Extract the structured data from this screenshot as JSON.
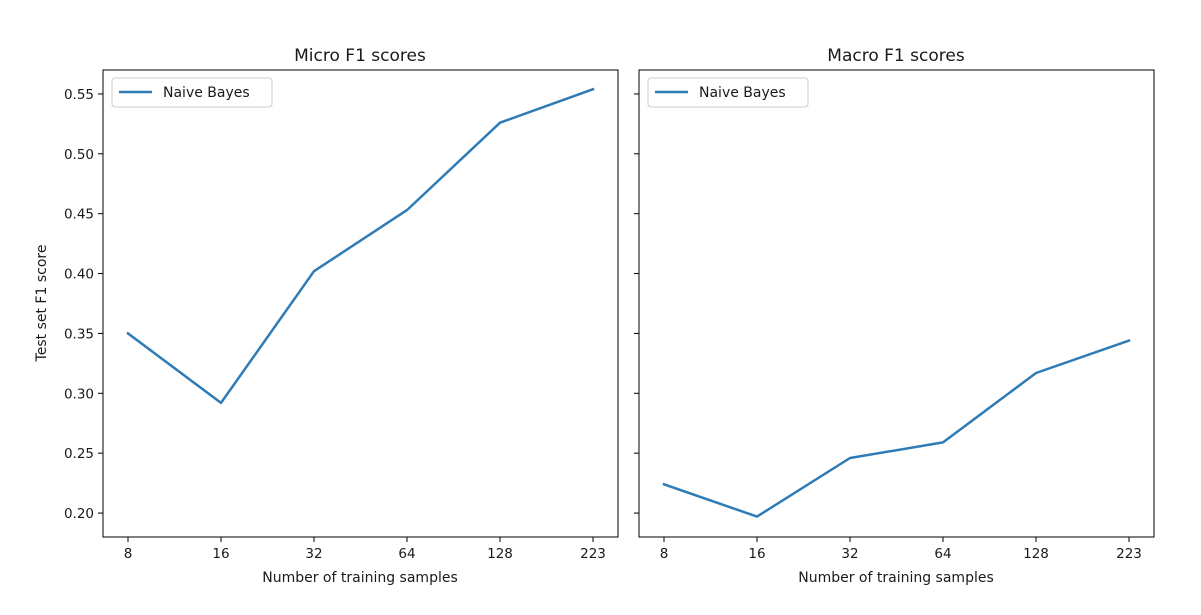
{
  "chart_data": [
    {
      "type": "line",
      "title": "Micro F1 scores",
      "xlabel": "Number of training samples",
      "ylabel": "Test set F1 score",
      "x": [
        "8",
        "16",
        "32",
        "64",
        "128",
        "223"
      ],
      "yticks": [
        "0.20",
        "0.25",
        "0.30",
        "0.35",
        "0.40",
        "0.45",
        "0.50",
        "0.55"
      ],
      "ylim": [
        0.18,
        0.57
      ],
      "grid": false,
      "legend": "top-left",
      "series": [
        {
          "name": "Naive Bayes",
          "color": "#2e7bb6",
          "values": [
            0.35,
            0.292,
            0.402,
            0.453,
            0.526,
            0.554
          ]
        }
      ]
    },
    {
      "type": "line",
      "title": "Macro F1 scores",
      "xlabel": "Number of training samples",
      "ylabel": "",
      "x": [
        "8",
        "16",
        "32",
        "64",
        "128",
        "223"
      ],
      "yticks": [
        "0.20",
        "0.25",
        "0.30",
        "0.35",
        "0.40",
        "0.45",
        "0.50",
        "0.55"
      ],
      "ylim": [
        0.18,
        0.57
      ],
      "grid": false,
      "legend": "top-left",
      "series": [
        {
          "name": "Naive Bayes",
          "color": "#2e7bb6",
          "values": [
            0.224,
            0.197,
            0.246,
            0.259,
            0.317,
            0.344
          ]
        }
      ]
    }
  ]
}
